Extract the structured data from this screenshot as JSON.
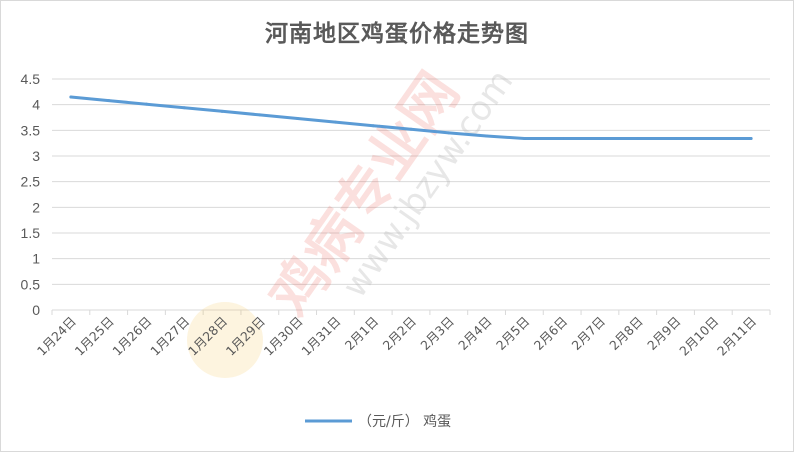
{
  "chart_data": {
    "type": "line",
    "title": "河南地区鸡蛋价格走势图",
    "categories": [
      "1月24日",
      "1月25日",
      "1月26日",
      "1月27日",
      "1月28日",
      "1月29日",
      "1月30日",
      "1月31日",
      "2月1日",
      "2月2日",
      "2月3日",
      "2月4日",
      "2月5日",
      "2月6日",
      "2月7日",
      "2月8日",
      "2月9日",
      "2月10日",
      "2月11日"
    ],
    "series": [
      {
        "name": "（元/斤） 鸡蛋",
        "color": "#5b9bd5",
        "values": [
          4.15,
          4.08,
          4.01,
          3.94,
          3.87,
          3.8,
          3.73,
          3.66,
          3.59,
          3.52,
          3.45,
          3.39,
          3.34,
          3.34,
          3.34,
          3.34,
          3.34,
          3.34,
          3.34
        ]
      }
    ],
    "yticks": [
      "0",
      "0.5",
      "1",
      "1.5",
      "2",
      "2.5",
      "3",
      "3.5",
      "4",
      "4.5"
    ],
    "ylim": [
      0,
      4.5
    ],
    "grid": true,
    "legend_position": "bottom"
  },
  "watermark": {
    "main": "鸡病专业网",
    "url": "www.jbzyw.com"
  }
}
